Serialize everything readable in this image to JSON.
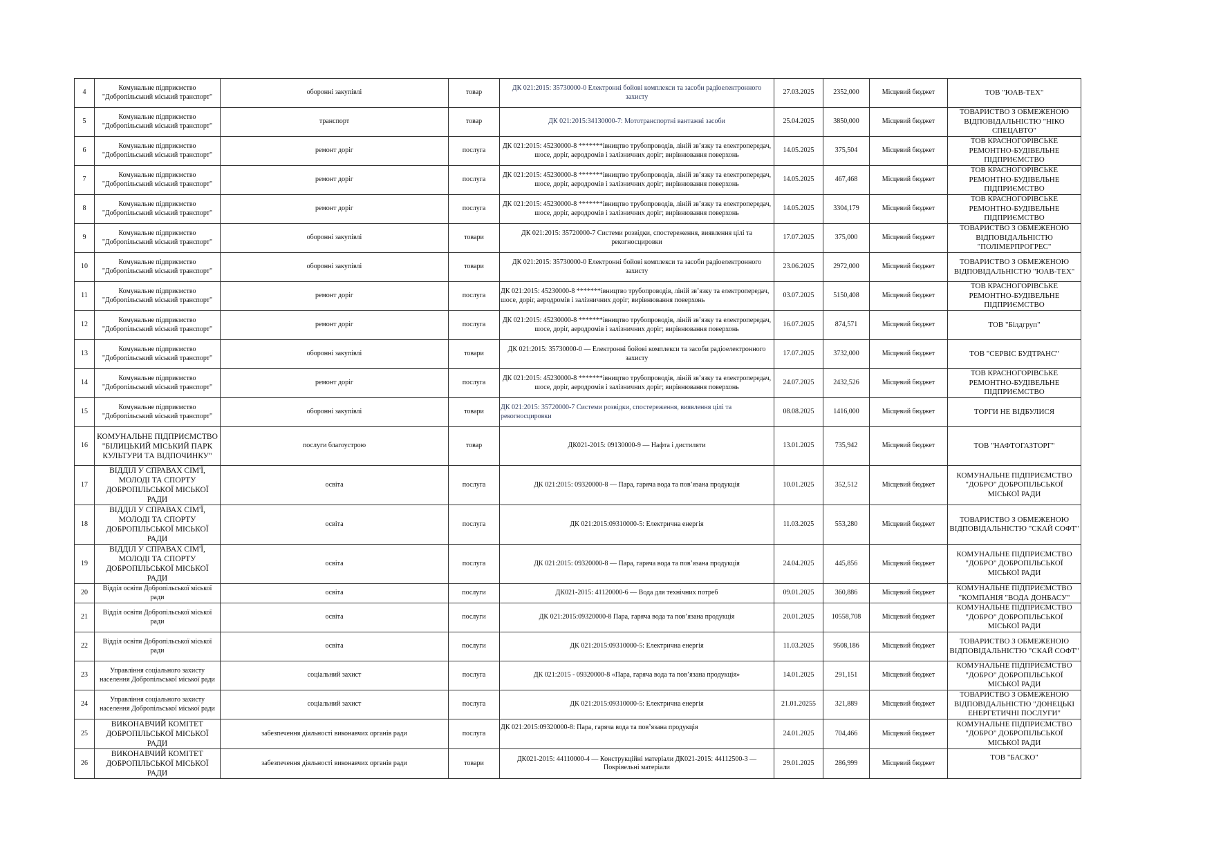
{
  "rows": [
    {
      "no": "4",
      "org": "Комунальне підприємство \"Добропільський міський транспорт\"",
      "subject": "оборонні закупівлі",
      "type": "товар",
      "dk": "ДК 021:2015: 35730000-0 Електронні бойові комплекси та засоби радіоелектронного захисту",
      "date": "27.03.2025",
      "sum": "2352,000",
      "budget": "Місцевий бюджет",
      "supplier": "ТОВ \"ЮАВ-ТЕХ\""
    },
    {
      "no": "5",
      "org": "Комунальне підприємство \"Добропільський міський транспорт\"",
      "subject": "транспорт",
      "type": "товар",
      "dk": "ДК 021:2015:34130000-7: Мототранспортні вантажні засоби",
      "date": "25.04.2025",
      "sum": "3850,000",
      "budget": "Місцевий бюджет",
      "supplier": "ТОВАРИСТВО З ОБМЕЖЕНОЮ ВІДПОВІДАЛЬНІСТЮ \"НІКО СПЕЦАВТО\""
    },
    {
      "no": "6",
      "org": "Комунальне підприємство \"Добропільський міський транспорт\"",
      "subject": "ремонт доріг",
      "type": "послуга",
      "dk": "ДК 021:2015: 45230000-8 *******івництво трубопроводів, ліній зв’язку та електропередач, шосе, доріг, аеродромів і залізничних доріг; вирівнювання поверхонь",
      "date": "14.05.2025",
      "sum": "375,504",
      "budget": "Місцевий бюджет",
      "supplier": "ТОВ КРАСНОГОРІВСЬКЕ РЕМОНТНО-БУДІВЕЛЬНЕ ПІДПРИЄМСТВО"
    },
    {
      "no": "7",
      "org": "Комунальне підприємство \"Добропільський міський транспорт\"",
      "subject": "ремонт доріг",
      "type": "послуга",
      "dk": "ДК 021:2015: 45230000-8 *******івництво трубопроводів, ліній зв’язку та електропередач, шосе, доріг, аеродромів і залізничних доріг; вирівнювання поверхонь",
      "date": "14.05.2025",
      "sum": "467,468",
      "budget": "Місцевий бюджет",
      "supplier": "ТОВ КРАСНОГОРІВСЬКЕ РЕМОНТНО-БУДІВЕЛЬНЕ ПІДПРИЄМСТВО"
    },
    {
      "no": "8",
      "org": "Комунальне підприємство \"Добропільський міський транспорт\"",
      "subject": "ремонт доріг",
      "type": "послуга",
      "dk": "ДК 021:2015: 45230000-8 *******івництво трубопроводів, ліній зв’язку та електропередач, шосе, доріг, аеродромів і залізничних доріг; вирівнювання поверхонь",
      "date": "14.05.2025",
      "sum": "3304,179",
      "budget": "Місцевий бюджет",
      "supplier": "ТОВ КРАСНОГОРІВСЬКЕ РЕМОНТНО-БУДІВЕЛЬНЕ ПІДПРИЄМСТВО"
    },
    {
      "no": "9",
      "org": "Комунальне підприємство \"Добропільський міський транспорт\"",
      "subject": "оборонні закупівлі",
      "type": "товари",
      "dk": "ДК 021:2015: 35720000-7 Системи розвідки, спостереження, виявлення цілі та рекогносцировки",
      "date": "17.07.2025",
      "sum": "375,000",
      "budget": "Місцевий бюджет",
      "supplier": "ТОВАРИСТВО З ОБМЕЖЕНОЮ ВІДПОВІДАЛЬНІСТЮ \"ПОЛІМЕРПРОГРЕС\""
    },
    {
      "no": "10",
      "org": "Комунальне підприємство \"Добропільський міський транспорт\"",
      "subject": "оборонні закупівлі",
      "type": "товари",
      "dk": "ДК 021:2015: 35730000-0 Електронні бойові комплекси та засоби радіоелектронного захисту",
      "date": "23.06.2025",
      "sum": "2972,000",
      "budget": "Місцевий бюджет",
      "supplier": "ТОВАРИСТВО З ОБМЕЖЕНОЮ ВІДПОВІДАЛЬНІСТЮ \"ЮАВ-ТЕХ\""
    },
    {
      "no": "11",
      "org": "Комунальне підприємство \"Добропільський міський транспорт\"",
      "subject": "ремонт доріг",
      "type": "послуга",
      "dk": "ДК 021:2015: 45230000-8 *******івництво трубопроводів, ліній зв’язку та електропередач, шосе, доріг, аеродромів і залізничних доріг; вирівнювання поверхонь",
      "date": "03.07.2025",
      "sum": "5150,408",
      "budget": "Місцевий бюджет",
      "supplier": "ТОВ КРАСНОГОРІВСЬКЕ РЕМОНТНО-БУДІВЕЛЬНЕ ПІДПРИЄМСТВО"
    },
    {
      "no": "12",
      "org": "Комунальне підприємство \"Добропільський міський транспорт\"",
      "subject": "ремонт доріг",
      "type": "послуга",
      "dk": "ДК 021:2015: 45230000-8 *******івництво трубопроводів, ліній зв’язку та електропередач, шосе, доріг, аеродромів і залізничних доріг; вирівнювання поверхонь",
      "date": "16.07.2025",
      "sum": "874,571",
      "budget": "Місцевий бюджет",
      "supplier": "ТОВ \"Білдгруп\""
    },
    {
      "no": "13",
      "org": "Комунальне підприємство \"Добропільський міський транспорт\"",
      "subject": "оборонні закупівлі",
      "type": "товари",
      "dk": "ДК 021:2015: 35730000-0 — Електронні бойові комплекси та засоби радіоелектронного захисту",
      "date": "17.07.2025",
      "sum": "3732,000",
      "budget": "Місцевий бюджет",
      "supplier": "ТОВ \"СЕРВІС БУДТРАНС\""
    },
    {
      "no": "14",
      "org": "Комунальне підприємство \"Добропільський міський транспорт\"",
      "subject": "ремонт доріг",
      "type": "послуга",
      "dk": "ДК 021:2015: 45230000-8 *******івництво трубопроводів, ліній зв’язку та електропередач, шосе, доріг, аеродромів і залізничних доріг; вирівнювання поверхонь",
      "date": "24.07.2025",
      "sum": "2432,526",
      "budget": "Місцевий бюджет",
      "supplier": "ТОВ КРАСНОГОРІВСЬКЕ РЕМОНТНО-БУДІВЕЛЬНЕ ПІДПРИЄМСТВО"
    },
    {
      "no": "15",
      "org": "Комунальне підприємство \"Добропільський міський транспорт\"",
      "subject": "оборонні закупівлі",
      "type": "товари",
      "dk": "ДК 021:2015: 35720000-7 Системи розвідки, спостереження, виявлення цілі та рекогносцировки",
      "date": "08.08.2025",
      "sum": "1416,000",
      "budget": "Місцевий бюджет",
      "supplier": "ТОРГИ НЕ ВІДБУЛИСЯ"
    },
    {
      "no": "16",
      "org": "КОМУНАЛЬНЕ ПІДПРИЄМСТВО \"БІЛИЦЬКИЙ МІСЬКИЙ ПАРК КУЛЬТУРИ ТА ВІДПОЧИНКУ\"",
      "subject": "послуги благоустрою",
      "type": "товар",
      "dk": "ДК021-2015: 09130000-9 — Нафта і дистиляти",
      "date": "13.01.2025",
      "sum": "735,942",
      "budget": "Місцевий бюджет",
      "supplier": "ТОВ \"НАФТОГАЗТОРГ\""
    },
    {
      "no": "17",
      "org": "ВІДДІЛ У СПРАВАХ СІМ'Ї, МОЛОДІ ТА СПОРТУ ДОБРОПІЛЬСЬКОЇ МІСЬКОЇ РАДИ",
      "subject": "освіта",
      "type": "послуга",
      "dk": "ДК 021:2015: 09320000-8 — Пара, гаряча вода та пов’язана продукція",
      "date": "10.01.2025",
      "sum": "352,512",
      "budget": "Місцевий бюджет",
      "supplier": "КОМУНАЛЬНЕ ПІДПРИЄМСТВО \"ДОБРО\" ДОБРОПІЛЬСЬКОЇ МІСЬКОЇ РАДИ"
    },
    {
      "no": "18",
      "org": "ВІДДІЛ У СПРАВАХ СІМ'Ї, МОЛОДІ ТА СПОРТУ ДОБРОПІЛЬСЬКОЇ МІСЬКОЇ РАДИ",
      "subject": "освіта",
      "type": "послуга",
      "dk": "ДК 021:2015:09310000-5: Електрична енергія",
      "date": "11.03.2025",
      "sum": "553,280",
      "budget": "Місцевий бюджет",
      "supplier": "ТОВАРИСТВО З ОБМЕЖЕНОЮ ВІДПОВІДАЛЬНІСТЮ \"СКАЙ СОФТ\""
    },
    {
      "no": "19",
      "org": "ВІДДІЛ У СПРАВАХ СІМ'Ї, МОЛОДІ ТА СПОРТУ ДОБРОПІЛЬСЬКОЇ МІСЬКОЇ РАДИ",
      "subject": "освіта",
      "type": "послуга",
      "dk": "ДК 021:2015: 09320000-8 — Пара, гаряча вода та пов’язана продукція",
      "date": "24.04.2025",
      "sum": "445,856",
      "budget": "Місцевий бюджет",
      "supplier": "КОМУНАЛЬНЕ ПІДПРИЄМСТВО \"ДОБРО\" ДОБРОПІЛЬСЬКОЇ МІСЬКОЇ РАДИ"
    },
    {
      "no": "20",
      "org": "Відділ освіти Добропільської міської ради",
      "subject": "освіта",
      "type": "послуги",
      "dk": "ДК021-2015: 41120000-6 — Вода для технічних потреб",
      "date": "09.01.2025",
      "sum": "360,886",
      "budget": "Місцевий бюджет",
      "supplier": "КОМУНАЛЬНЕ ПІДПРИЄМСТВО \"КОМПАНІЯ \"ВОДА ДОНБАСУ\""
    },
    {
      "no": "21",
      "org": "Відділ освіти Добропільської міської ради",
      "subject": "освіта",
      "type": "послуги",
      "dk": "ДК 021:2015:09320000-8 Пара, гаряча вода та пов’язана продукція",
      "date": "20.01.2025",
      "sum": "10558,708",
      "budget": "Місцевий бюджет",
      "supplier": "КОМУНАЛЬНЕ ПІДПРИЄМСТВО \"ДОБРО\" ДОБРОПІЛЬСЬКОЇ МІСЬКОЇ РАДИ"
    },
    {
      "no": "22",
      "org": "Відділ освіти Добропільської міської ради",
      "subject": "освіта",
      "type": "послуги",
      "dk": "ДК 021:2015:09310000-5: Електрична енергія",
      "date": "11.03.2025",
      "sum": "9508,186",
      "budget": "Місцевий бюджет",
      "supplier": "ТОВАРИСТВО З ОБМЕЖЕНОЮ ВІДПОВІДАЛЬНІСТЮ \"СКАЙ СОФТ\""
    },
    {
      "no": "23",
      "org": "Управління соціального захисту населення Добропільської міської ради",
      "subject": "соціальний захист",
      "type": "послуга",
      "dk": "ДК 021:2015 - 09320000-8 «Пара, гаряча вода та пов’язана продукція»",
      "date": "14.01.2025",
      "sum": "291,151",
      "budget": "Місцевий бюджет",
      "supplier": "КОМУНАЛЬНЕ ПІДПРИЄМСТВО \"ДОБРО\" ДОБРОПІЛЬСЬКОЇ МІСЬКОЇ РАДИ"
    },
    {
      "no": "24",
      "org": "Управління соціального захисту населення Добропільської міської ради",
      "subject": "соціальний захист",
      "type": "послуга",
      "dk": "ДК 021:2015:09310000-5: Електрична енергія",
      "date": "21.01.20255",
      "sum": "321,889",
      "budget": "Місцевий бюджет",
      "supplier": "ТОВАРИСТВО З ОБМЕЖЕНОЮ ВІДПОВІДАЛЬНІСТЮ \"ДОНЕЦЬКІ ЕНЕРГЕТИЧНІ ПОСЛУГИ\""
    },
    {
      "no": "25",
      "org": "ВИКОНАВЧИЙ КОМІТЕТ ДОБРОПІЛЬСЬКОЇ МІСЬКОЇ РАДИ",
      "subject": "забезпечення діяльності виконавчих органів ради",
      "type": "послуга",
      "dk": "ДК 021:2015:09320000-8: Пара, гаряча вода та пов’язана продукція",
      "date": "24.01.2025",
      "sum": "704,466",
      "budget": "Місцевий бюджет",
      "supplier": "КОМУНАЛЬНЕ ПІДПРИЄМСТВО \"ДОБРО\" ДОБРОПІЛЬСЬКОЇ МІСЬКОЇ РАДИ"
    },
    {
      "no": "26",
      "org": "ВИКОНАВЧИЙ КОМІТЕТ ДОБРОПІЛЬСЬКОЇ МІСЬКОЇ РАДИ",
      "subject": "забезпечення діяльності виконавчих органів ради",
      "type": "товари",
      "dk": "ДК021-2015: 44110000-4 — Конструкційні матеріали ДК021-2015: 44112500-3 — Покрівельні матеріали",
      "date": "29.01.2025",
      "sum": "286,999",
      "budget": "Місцевий бюджет",
      "supplier": "ТОВ \"БАСКО\""
    }
  ]
}
